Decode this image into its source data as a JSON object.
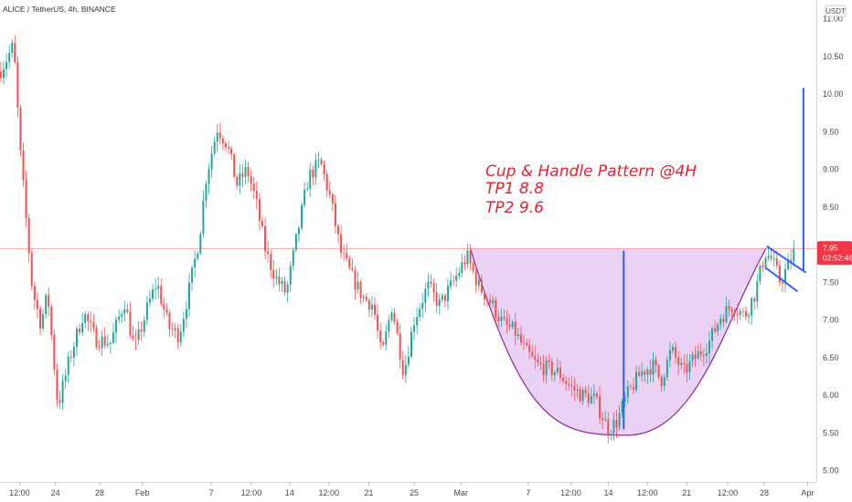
{
  "chart_data": {
    "type": "candlestick",
    "title": "ALICE / TetherUS, 4h, BINANCE",
    "unit": "USDT",
    "ylim": [
      4.85,
      11.25
    ],
    "xlim": [
      0,
      100
    ],
    "y_ticks": [
      "11.00",
      "10.50",
      "10.00",
      "9.50",
      "9.00",
      "8.50",
      "8.00",
      "7.50",
      "7.00",
      "6.50",
      "6.00",
      "5.50",
      "5.00"
    ],
    "x_ticks": [
      {
        "label": "12:00",
        "t": 2.3
      },
      {
        "label": "24",
        "t": 6.5
      },
      {
        "label": "28",
        "t": 11.7
      },
      {
        "label": "Feb",
        "t": 16.7
      },
      {
        "label": "7",
        "t": 24.8
      },
      {
        "label": "12:00",
        "t": 29.5
      },
      {
        "label": "14",
        "t": 34.0
      },
      {
        "label": "12:00",
        "t": 38.6
      },
      {
        "label": "21",
        "t": 43.3
      },
      {
        "label": "25",
        "t": 48.6
      },
      {
        "label": "Mar",
        "t": 54.1
      },
      {
        "label": "7",
        "t": 62.0
      },
      {
        "label": "12:00",
        "t": 67.0
      },
      {
        "label": "14",
        "t": 71.4
      },
      {
        "label": "12:00",
        "t": 76.0
      },
      {
        "label": "21",
        "t": 80.6
      },
      {
        "label": "12:00",
        "t": 85.4
      },
      {
        "label": "28",
        "t": 89.7
      },
      {
        "label": "Apr",
        "t": 94.8
      }
    ],
    "anchors": [
      [
        0,
        10.3
      ],
      [
        1.6,
        10.65
      ],
      [
        2.4,
        9.2
      ],
      [
        3.8,
        7.4
      ],
      [
        4.8,
        6.95
      ],
      [
        5.6,
        7.35
      ],
      [
        6.8,
        5.85
      ],
      [
        8.2,
        6.5
      ],
      [
        9.8,
        7.1
      ],
      [
        11.2,
        6.75
      ],
      [
        13.0,
        6.7
      ],
      [
        14.6,
        7.25
      ],
      [
        15.8,
        6.6
      ],
      [
        17.4,
        7.2
      ],
      [
        18.4,
        7.5
      ],
      [
        19.8,
        6.9
      ],
      [
        21.0,
        6.8
      ],
      [
        22.2,
        7.4
      ],
      [
        23.4,
        8.1
      ],
      [
        24.2,
        8.9
      ],
      [
        25.5,
        9.55
      ],
      [
        26.6,
        9.35
      ],
      [
        27.8,
        8.8
      ],
      [
        29.0,
        9.0
      ],
      [
        30.0,
        8.6
      ],
      [
        31.2,
        7.9
      ],
      [
        32.4,
        7.55
      ],
      [
        33.6,
        7.35
      ],
      [
        35.0,
        8.2
      ],
      [
        36.2,
        8.9
      ],
      [
        37.6,
        9.1
      ],
      [
        38.8,
        8.6
      ],
      [
        40.0,
        7.9
      ],
      [
        41.2,
        7.6
      ],
      [
        42.6,
        7.3
      ],
      [
        43.8,
        7.2
      ],
      [
        44.8,
        6.5
      ],
      [
        46.0,
        7.2
      ],
      [
        47.4,
        6.3
      ],
      [
        48.6,
        7.0
      ],
      [
        50.2,
        7.45
      ],
      [
        51.6,
        7.2
      ],
      [
        53.2,
        7.5
      ],
      [
        54.8,
        7.85
      ],
      [
        56.2,
        7.45
      ],
      [
        57.8,
        7.2
      ],
      [
        59.0,
        6.95
      ],
      [
        60.4,
        6.85
      ],
      [
        61.6,
        6.6
      ],
      [
        63.0,
        6.4
      ],
      [
        64.4,
        6.35
      ],
      [
        65.6,
        6.3
      ],
      [
        67.0,
        6.1
      ],
      [
        68.4,
        6.0
      ],
      [
        69.8,
        5.95
      ],
      [
        71.4,
        5.55
      ],
      [
        72.4,
        5.65
      ],
      [
        73.6,
        6.0
      ],
      [
        75.2,
        6.3
      ],
      [
        76.6,
        6.4
      ],
      [
        77.6,
        6.2
      ],
      [
        78.8,
        6.6
      ],
      [
        80.2,
        6.3
      ],
      [
        81.6,
        6.5
      ],
      [
        83.2,
        6.7
      ],
      [
        84.6,
        7.05
      ],
      [
        86.0,
        7.2
      ],
      [
        87.4,
        7.05
      ],
      [
        88.6,
        7.35
      ],
      [
        89.8,
        7.9
      ],
      [
        90.6,
        7.8
      ],
      [
        91.6,
        7.5
      ],
      [
        92.6,
        7.75
      ],
      [
        93.4,
        7.95
      ]
    ],
    "current_price": "7.95",
    "countdown": "02:52:46",
    "resistance": 7.95,
    "cup": {
      "t_start": 55.2,
      "t_bottom": 73.6,
      "y_bottom": 5.47,
      "t_end": 89.9,
      "y_top": 7.95
    },
    "handle": {
      "upper": [
        [
          90.0,
          7.98
        ],
        [
          94.6,
          7.63
        ]
      ],
      "lower": [
        [
          89.8,
          7.7
        ],
        [
          93.6,
          7.38
        ]
      ]
    },
    "target_lines": [
      {
        "t": 73.2,
        "y0": 5.55,
        "y1": 7.92
      },
      {
        "t": 94.3,
        "y0": 7.65,
        "y1": 10.08
      }
    ],
    "annotation": [
      "Cup & Handle Pattern @4H",
      "TP1 8.8",
      "TP2 9.6"
    ],
    "colors": {
      "up": "#26a69a",
      "down": "#ef5350",
      "cup_fill": "#e3bdf0",
      "cup_stroke": "#8e24aa",
      "target": "#2962ff",
      "annotation": "#e8212e",
      "badge": "#f23645",
      "resistance": "#f28b8b"
    }
  }
}
